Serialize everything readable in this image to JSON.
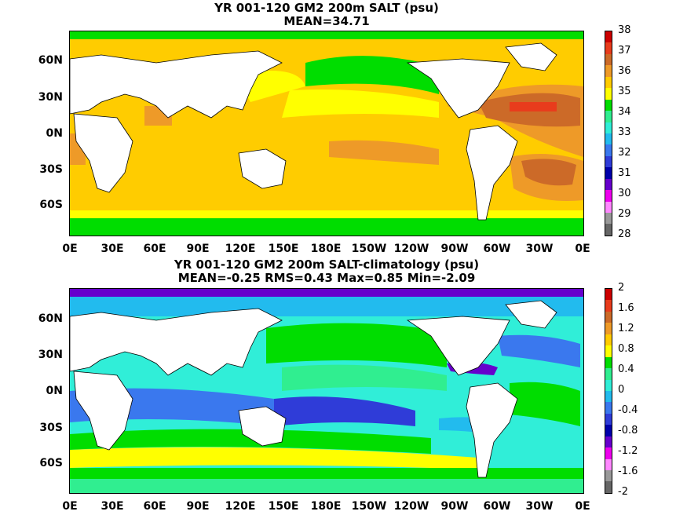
{
  "panel1": {
    "title": "YR 001-120 GM2 200m SALT (psu)",
    "subtitle": "MEAN=34.71"
  },
  "panel2": {
    "title": "YR 001-120 GM2 200m SALT-climatology (psu)",
    "subtitle": "MEAN=-0.25   RMS=0.43   Max=0.85   Min=-2.09"
  },
  "axes": {
    "y_labels": [
      "60N",
      "30N",
      "0N",
      "30S",
      "60S"
    ],
    "x_labels": [
      "0E",
      "30E",
      "60E",
      "90E",
      "120E",
      "150E",
      "180E",
      "150W",
      "120W",
      "90W",
      "60W",
      "30W",
      "0E"
    ]
  },
  "colorbar1": {
    "labels": [
      "38",
      "37",
      "36",
      "35",
      "34",
      "33",
      "32",
      "31",
      "30",
      "29",
      "28"
    ],
    "colors": [
      "#cc0000",
      "#e83c1c",
      "#cc6a28",
      "#ee9a28",
      "#ffcc00",
      "#ffff00",
      "#00dd00",
      "#30ee90",
      "#30eed8",
      "#22bbee",
      "#3a78ee",
      "#2f3cd8",
      "#0000aa",
      "#6600cc",
      "#ee00ee",
      "#ff88ff",
      "#999999",
      "#666666"
    ]
  },
  "colorbar2": {
    "labels": [
      "2",
      "1.6",
      "1.2",
      "0.8",
      "0.4",
      "0",
      "-0.4",
      "-0.8",
      "-1.2",
      "-1.6",
      "-2"
    ],
    "colors": [
      "#cc0000",
      "#e83c1c",
      "#cc6a28",
      "#ee9a28",
      "#ffcc00",
      "#ffff00",
      "#00dd00",
      "#30ee90",
      "#30eed8",
      "#22bbee",
      "#3a78ee",
      "#2f3cd8",
      "#0000aa",
      "#6600cc",
      "#ee00ee",
      "#ff88ff",
      "#999999",
      "#666666"
    ]
  }
}
